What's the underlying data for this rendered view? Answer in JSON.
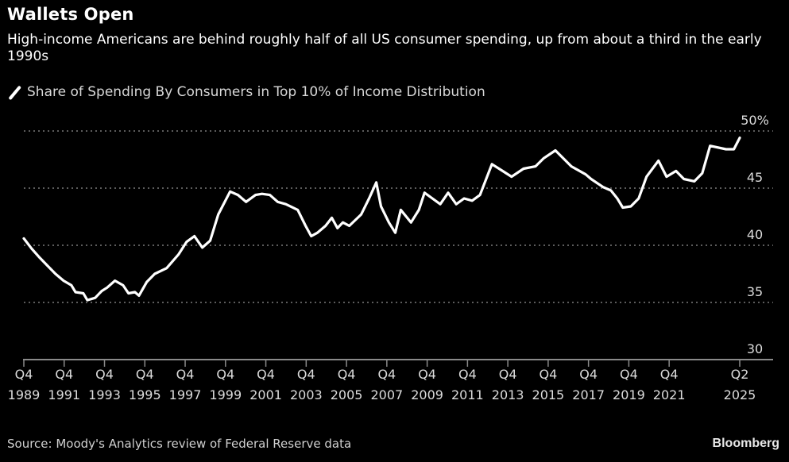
{
  "header": {
    "title": "Wallets Open",
    "subtitle": "High-income Americans are behind roughly half of all US consumer spending, up from about a third in the early 1990s"
  },
  "legend": {
    "icon": "line-swatch-icon",
    "label": "Share of Spending By Consumers in Top 10% of Income Distribution",
    "color": "#ffffff"
  },
  "footer": {
    "source": "Source: Moody's Analytics review of Federal Reserve data",
    "brand": "Bloomberg"
  },
  "chart_data": {
    "type": "line",
    "title": "Wallets Open",
    "subtitle": "High-income Americans are behind roughly half of all US consumer spending, up from about a third in the early 1990s",
    "xlabel": "",
    "ylabel": "",
    "y_unit": "%",
    "ylim": [
      30,
      50
    ],
    "xlim": [
      1989.75,
      2025.25
    ],
    "grid": true,
    "legend_position": "top-left",
    "y_ticks": [
      {
        "value": 50,
        "label": "50%"
      },
      {
        "value": 45,
        "label": "45"
      },
      {
        "value": 40,
        "label": "40"
      },
      {
        "value": 35,
        "label": "35"
      },
      {
        "value": 30,
        "label": "30"
      }
    ],
    "x_ticks": [
      {
        "value": 1989.75,
        "line1": "Q4",
        "line2": "1989"
      },
      {
        "value": 1991.75,
        "line1": "Q4",
        "line2": "1991"
      },
      {
        "value": 1993.75,
        "line1": "Q4",
        "line2": "1993"
      },
      {
        "value": 1995.75,
        "line1": "Q4",
        "line2": "1995"
      },
      {
        "value": 1997.75,
        "line1": "Q4",
        "line2": "1997"
      },
      {
        "value": 1999.75,
        "line1": "Q4",
        "line2": "1999"
      },
      {
        "value": 2001.75,
        "line1": "Q4",
        "line2": "2001"
      },
      {
        "value": 2003.75,
        "line1": "Q4",
        "line2": "2003"
      },
      {
        "value": 2005.75,
        "line1": "Q4",
        "line2": "2005"
      },
      {
        "value": 2007.75,
        "line1": "Q4",
        "line2": "2007"
      },
      {
        "value": 2009.75,
        "line1": "Q4",
        "line2": "2009"
      },
      {
        "value": 2011.75,
        "line1": "Q4",
        "line2": "2011"
      },
      {
        "value": 2013.75,
        "line1": "Q4",
        "line2": "2013"
      },
      {
        "value": 2015.75,
        "line1": "Q4",
        "line2": "2015"
      },
      {
        "value": 2017.75,
        "line1": "Q4",
        "line2": "2017"
      },
      {
        "value": 2019.75,
        "line1": "Q4",
        "line2": "2019"
      },
      {
        "value": 2021.75,
        "line1": "Q4",
        "line2": "2021"
      },
      {
        "value": 2025.25,
        "line1": "Q2",
        "line2": "2025"
      }
    ],
    "series": [
      {
        "name": "Share of Spending By Consumers in Top 10% of Income Distribution",
        "color": "#ffffff",
        "x": [
          1989.75,
          1990.14,
          1990.54,
          1990.93,
          1991.32,
          1991.72,
          1992.11,
          1992.31,
          1992.7,
          1992.9,
          1993.29,
          1993.61,
          1993.88,
          1994.27,
          1994.67,
          1994.94,
          1995.26,
          1995.46,
          1995.85,
          1996.24,
          1996.83,
          1997.42,
          1997.82,
          1998.21,
          1998.6,
          1998.99,
          1999.39,
          1999.98,
          2000.37,
          2000.77,
          2001.24,
          2001.56,
          2001.95,
          2002.34,
          2002.74,
          2003.33,
          2003.72,
          2004.0,
          2004.31,
          2004.71,
          2005.02,
          2005.3,
          2005.57,
          2005.89,
          2006.48,
          2006.87,
          2007.23,
          2007.46,
          2007.85,
          2008.17,
          2008.44,
          2008.95,
          2009.34,
          2009.62,
          2010.01,
          2010.4,
          2010.79,
          2011.19,
          2011.58,
          2011.98,
          2012.37,
          2012.96,
          2013.94,
          2014.53,
          2015.12,
          2015.52,
          2016.11,
          2016.9,
          2017.61,
          2017.88,
          2018.47,
          2018.86,
          2019.18,
          2019.45,
          2019.85,
          2020.24,
          2020.63,
          2021.22,
          2021.62,
          2022.09,
          2022.48,
          2023.0,
          2023.39,
          2024.57,
          2023.78,
          2024.96,
          2025.25
        ],
        "values": [
          40.6,
          39.7,
          38.9,
          38.2,
          37.5,
          36.9,
          36.5,
          35.9,
          35.8,
          35.2,
          35.4,
          36.0,
          36.3,
          36.9,
          36.5,
          35.8,
          35.9,
          35.6,
          36.8,
          37.5,
          38.0,
          39.2,
          40.3,
          40.8,
          39.8,
          40.4,
          42.7,
          44.7,
          44.4,
          43.8,
          44.4,
          44.5,
          44.4,
          43.8,
          43.6,
          43.1,
          41.7,
          40.8,
          41.1,
          41.7,
          42.4,
          41.5,
          42.0,
          41.7,
          42.7,
          44.1,
          45.5,
          43.4,
          42.0,
          41.1,
          43.1,
          42.0,
          43.1,
          44.6,
          44.1,
          43.6,
          44.6,
          43.6,
          44.1,
          43.9,
          44.4,
          47.1,
          46.0,
          46.7,
          46.9,
          47.6,
          48.3,
          46.9,
          46.2,
          45.8,
          45.1,
          44.8,
          44.1,
          43.3,
          43.4,
          44.1,
          46.0,
          47.4,
          46.0,
          46.5,
          45.8,
          45.6,
          46.3,
          48.4,
          48.7,
          48.4,
          49.4
        ]
      }
    ]
  }
}
